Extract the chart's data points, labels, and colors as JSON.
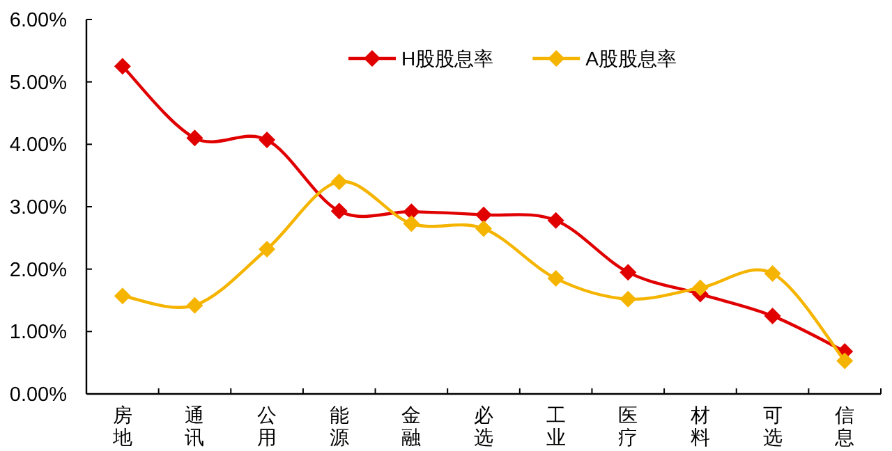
{
  "chart_data": {
    "type": "line",
    "categories": [
      "房地",
      "通讯",
      "公用",
      "能源",
      "金融",
      "必选",
      "工业",
      "医疗",
      "材料",
      "可选",
      "信息"
    ],
    "series": [
      {
        "name": "H股股息率",
        "color": "#e00000",
        "values": [
          5.25,
          4.1,
          4.07,
          2.93,
          2.92,
          2.87,
          2.78,
          1.95,
          1.6,
          1.25,
          0.68
        ]
      },
      {
        "name": "A股股息率",
        "color": "#f5b400",
        "values": [
          1.57,
          1.42,
          2.32,
          3.4,
          2.73,
          2.65,
          1.85,
          1.52,
          1.7,
          1.93,
          0.53
        ]
      }
    ],
    "ylim": [
      0,
      6
    ],
    "yticks": [
      {
        "value": 0,
        "label": "0.00%"
      },
      {
        "value": 1,
        "label": "1.00%"
      },
      {
        "value": 2,
        "label": "2.00%"
      },
      {
        "value": 3,
        "label": "3.00%"
      },
      {
        "value": 4,
        "label": "4.00%"
      },
      {
        "value": 5,
        "label": "5.00%"
      },
      {
        "value": 6,
        "label": "6.00%"
      }
    ],
    "marker": "diamond",
    "line_style": "solid",
    "legend": "top",
    "grid": false
  }
}
